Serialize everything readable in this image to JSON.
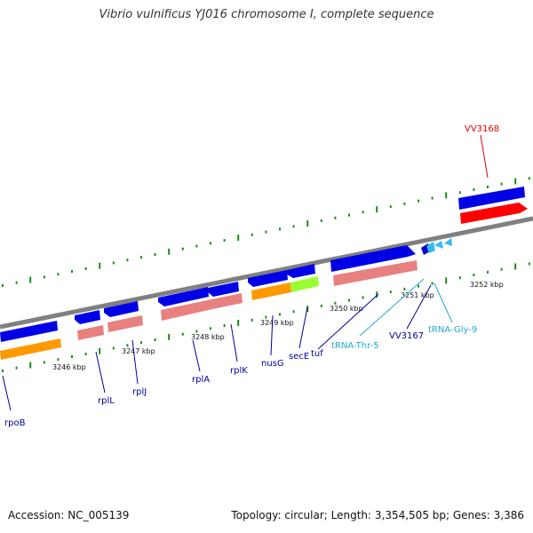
{
  "title": "Vibrio vulnificus YJ016 chromosome I, complete sequence",
  "footer": {
    "accession": "Accession: NC_005139",
    "topology": "Topology: circular; Length: 3,354,505 bp; Genes: 3,386"
  },
  "colors": {
    "backbone": "#808080",
    "gene_dark_blue": "#0000e6",
    "gene_red": "#ff0000",
    "cds_pink": "#e88080",
    "cds_orange": "#ff9900",
    "cds_green": "#99ff33",
    "trna_blue": "#33bbee",
    "tick_green": "#1a8c1a",
    "label_navy": "#000099",
    "label_red": "#dd0000",
    "label_cyan": "#22aacc"
  },
  "scale_labels": [
    "3246 kbp",
    "3247 kbp",
    "3248 kbp",
    "3249 kbp",
    "3250 kbp",
    "3251 kbp",
    "3252 kbp"
  ],
  "genes": [
    {
      "name": "rpoB",
      "color": "navy"
    },
    {
      "name": "rplL",
      "color": "navy"
    },
    {
      "name": "rplJ",
      "color": "navy"
    },
    {
      "name": "rplA",
      "color": "navy"
    },
    {
      "name": "rplK",
      "color": "navy"
    },
    {
      "name": "nusG",
      "color": "navy"
    },
    {
      "name": "secE",
      "color": "navy"
    },
    {
      "name": "tuf",
      "color": "navy"
    },
    {
      "name": "tRNA-Thr-5",
      "color": "cyan"
    },
    {
      "name": "VV3167",
      "color": "navy"
    },
    {
      "name": "tRNA-Gly-9",
      "color": "cyan"
    },
    {
      "name": "VV3168",
      "color": "red"
    }
  ]
}
